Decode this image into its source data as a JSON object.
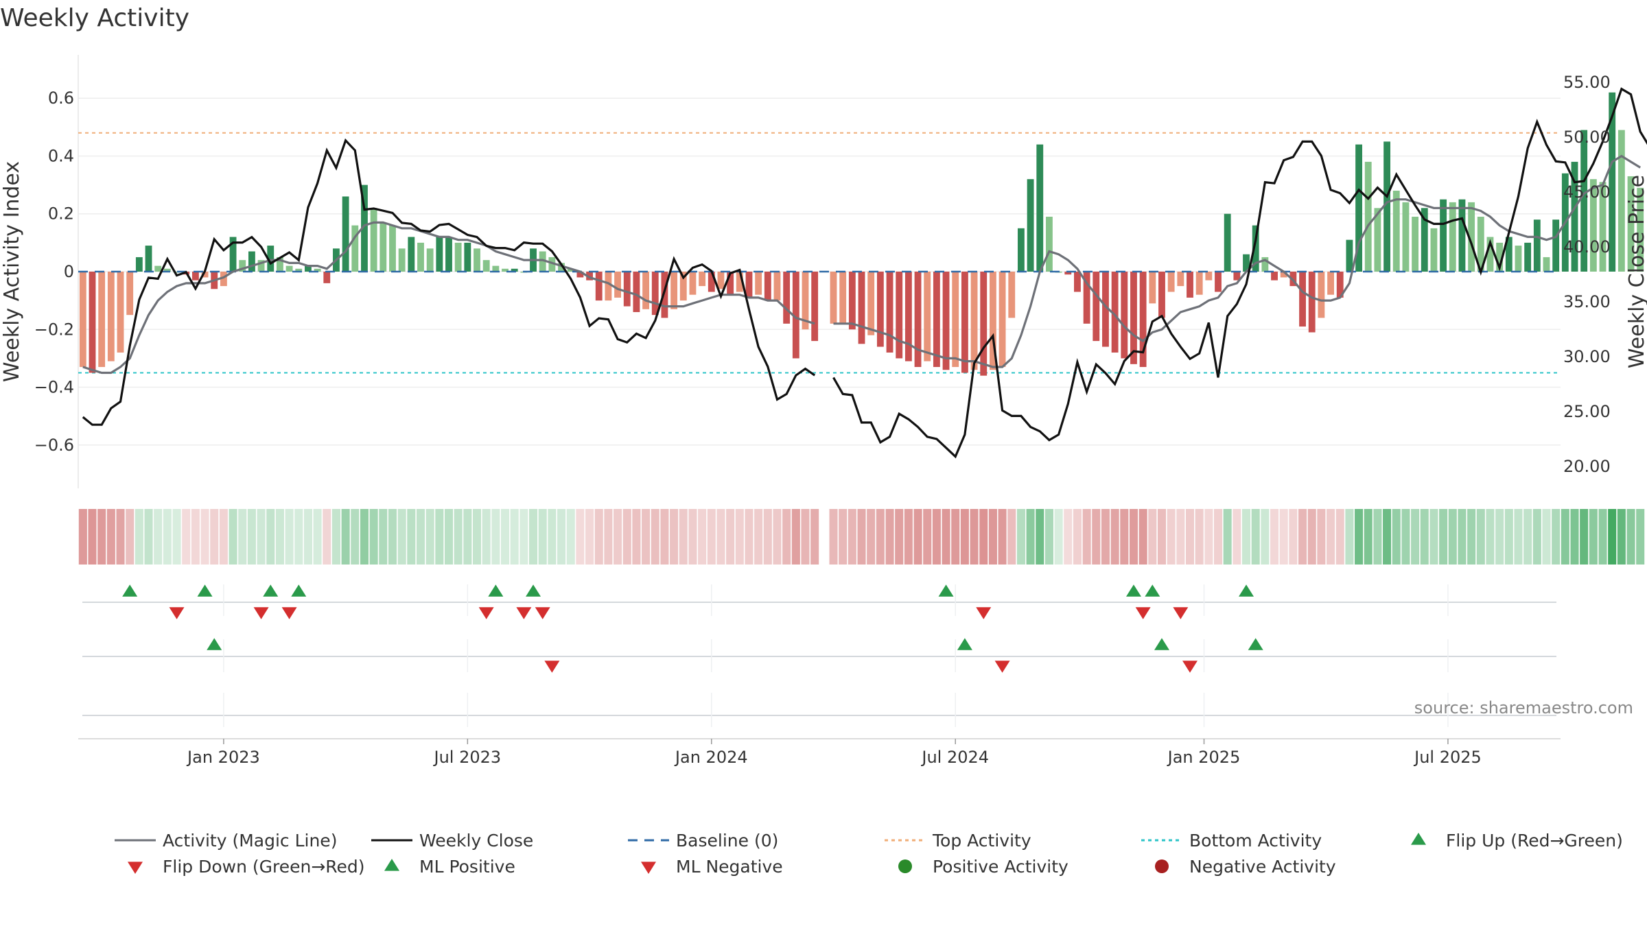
{
  "chart_data": {
    "type": "bar",
    "title": "Weekly Activity",
    "ylabel_left": "Weekly Activity Index",
    "ylabel_right": "Weekly Close Price",
    "source": "source: sharemaestro.com",
    "ylim_left": [
      -0.75,
      0.75
    ],
    "ylim_right": [
      18.0,
      57.5
    ],
    "left_ticks": [
      {
        "value": 0.6,
        "label": "0.6"
      },
      {
        "value": 0.4,
        "label": "0.4"
      },
      {
        "value": 0.2,
        "label": "0.2"
      },
      {
        "value": 0.0,
        "label": "0"
      },
      {
        "value": -0.2,
        "label": "−0.2"
      },
      {
        "value": -0.4,
        "label": "−0.4"
      },
      {
        "value": -0.6,
        "label": "−0.6"
      }
    ],
    "right_ticks": [
      {
        "value": 55,
        "label": "55.00"
      },
      {
        "value": 50,
        "label": "50.00"
      },
      {
        "value": 45,
        "label": "45.00"
      },
      {
        "value": 40,
        "label": "40.00"
      },
      {
        "value": 35,
        "label": "35.00"
      },
      {
        "value": 30,
        "label": "30.00"
      },
      {
        "value": 25,
        "label": "25.00"
      },
      {
        "value": 20,
        "label": "20.00"
      }
    ],
    "x_week_range": [
      -0.5,
      157.5
    ],
    "x_ticks": [
      {
        "week": 15,
        "label": "Jan 2023"
      },
      {
        "week": 41,
        "label": "Jul 2023"
      },
      {
        "week": 67,
        "label": "Jan 2024"
      },
      {
        "week": 93,
        "label": "Jul 2024"
      },
      {
        "week": 119.5,
        "label": "Jan 2025"
      },
      {
        "week": 145.5,
        "label": "Jul 2025"
      }
    ],
    "top_activity": 0.48,
    "bottom_activity": -0.35,
    "activity": [
      -0.33,
      -0.35,
      -0.33,
      -0.31,
      -0.28,
      -0.15,
      0.05,
      0.09,
      0.02,
      0.01,
      0.0,
      -0.01,
      -0.03,
      -0.02,
      -0.06,
      -0.05,
      0.12,
      0.04,
      0.07,
      0.04,
      0.09,
      0.05,
      0.02,
      0.01,
      0.02,
      0.01,
      -0.04,
      0.08,
      0.26,
      0.16,
      0.3,
      0.22,
      0.17,
      0.16,
      0.08,
      0.12,
      0.1,
      0.08,
      0.12,
      0.12,
      0.1,
      0.1,
      0.08,
      0.04,
      0.02,
      0.01,
      0.01,
      0.0,
      0.08,
      0.07,
      0.05,
      0.03,
      0.01,
      -0.02,
      -0.03,
      -0.1,
      -0.1,
      -0.09,
      -0.12,
      -0.14,
      -0.13,
      -0.15,
      -0.16,
      -0.13,
      -0.1,
      -0.08,
      -0.05,
      -0.07,
      -0.06,
      -0.08,
      -0.07,
      -0.09,
      -0.08,
      -0.1,
      -0.1,
      -0.18,
      -0.3,
      -0.2,
      -0.24,
      null,
      -0.18,
      -0.18,
      -0.2,
      -0.25,
      -0.22,
      -0.26,
      -0.28,
      -0.3,
      -0.31,
      -0.33,
      -0.31,
      -0.33,
      -0.34,
      -0.33,
      -0.35,
      -0.34,
      -0.36,
      -0.34,
      -0.33,
      -0.16,
      0.15,
      0.32,
      0.44,
      0.19,
      0.0,
      -0.01,
      -0.07,
      -0.18,
      -0.24,
      -0.26,
      -0.28,
      -0.3,
      -0.32,
      -0.33,
      -0.11,
      -0.16,
      -0.07,
      -0.05,
      -0.09,
      -0.08,
      -0.03,
      -0.07,
      0.2,
      -0.03,
      0.06,
      0.16,
      0.05,
      -0.03,
      -0.02,
      -0.05,
      -0.19,
      -0.21,
      -0.16,
      -0.08,
      -0.09,
      0.11,
      0.44,
      0.38,
      0.22,
      0.45,
      0.28,
      0.24,
      0.19,
      0.22,
      0.15,
      0.25,
      0.24,
      0.25,
      0.24,
      0.19,
      0.12,
      0.1,
      0.12,
      0.09,
      0.1,
      0.18,
      0.05,
      0.18,
      0.34,
      0.38,
      0.49,
      0.32,
      0.31,
      0.62,
      0.49,
      0.33,
      0.29
    ],
    "magic_line": [
      -0.33,
      -0.34,
      -0.35,
      -0.35,
      -0.33,
      -0.3,
      -0.22,
      -0.15,
      -0.1,
      -0.07,
      -0.05,
      -0.04,
      -0.04,
      -0.04,
      -0.03,
      -0.02,
      0.0,
      0.01,
      0.02,
      0.03,
      0.04,
      0.04,
      0.03,
      0.03,
      0.02,
      0.02,
      0.01,
      0.04,
      0.07,
      0.12,
      0.16,
      0.17,
      0.17,
      0.16,
      0.15,
      0.15,
      0.14,
      0.13,
      0.12,
      0.12,
      0.11,
      0.11,
      0.1,
      0.09,
      0.07,
      0.06,
      0.05,
      0.04,
      0.04,
      0.04,
      0.03,
      0.02,
      0.01,
      0.0,
      -0.02,
      -0.03,
      -0.04,
      -0.06,
      -0.07,
      -0.08,
      -0.1,
      -0.11,
      -0.12,
      -0.12,
      -0.12,
      -0.11,
      -0.1,
      -0.09,
      -0.08,
      -0.08,
      -0.08,
      -0.09,
      -0.09,
      -0.1,
      -0.1,
      -0.13,
      -0.16,
      -0.17,
      -0.18,
      null,
      -0.18,
      -0.18,
      -0.18,
      -0.19,
      -0.2,
      -0.21,
      -0.22,
      -0.24,
      -0.25,
      -0.27,
      -0.28,
      -0.29,
      -0.3,
      -0.3,
      -0.31,
      -0.31,
      -0.32,
      -0.33,
      -0.33,
      -0.3,
      -0.22,
      -0.12,
      0.0,
      0.07,
      0.06,
      0.04,
      0.01,
      -0.04,
      -0.08,
      -0.12,
      -0.15,
      -0.19,
      -0.22,
      -0.24,
      -0.21,
      -0.2,
      -0.17,
      -0.14,
      -0.13,
      -0.12,
      -0.1,
      -0.09,
      -0.05,
      -0.04,
      0.0,
      0.03,
      0.04,
      0.02,
      0.0,
      -0.03,
      -0.07,
      -0.09,
      -0.1,
      -0.1,
      -0.09,
      -0.04,
      0.1,
      0.16,
      0.2,
      0.24,
      0.25,
      0.25,
      0.24,
      0.23,
      0.22,
      0.22,
      0.22,
      0.22,
      0.22,
      0.21,
      0.19,
      0.16,
      0.14,
      0.13,
      0.12,
      0.12,
      0.11,
      0.12,
      0.17,
      0.22,
      0.27,
      0.29,
      0.3,
      0.38,
      0.4,
      0.38,
      0.36
    ],
    "weekly_close": [
      24.5,
      23.8,
      23.8,
      25.3,
      25.9,
      31.0,
      35.2,
      37.2,
      37.1,
      38.9,
      37.4,
      37.7,
      36.2,
      37.8,
      40.7,
      39.7,
      40.4,
      40.4,
      40.9,
      40.0,
      38.5,
      39.0,
      39.5,
      38.8,
      43.6,
      45.8,
      48.8,
      47.2,
      49.7,
      48.8,
      43.4,
      43.5,
      43.3,
      43.1,
      42.2,
      42.1,
      41.5,
      41.4,
      42.0,
      42.1,
      41.6,
      41.1,
      40.9,
      40.1,
      39.9,
      39.9,
      39.7,
      40.4,
      40.3,
      40.3,
      39.6,
      38.4,
      37.1,
      35.4,
      32.8,
      33.5,
      33.4,
      31.6,
      31.3,
      32.1,
      31.7,
      33.3,
      36.0,
      38.9,
      37.2,
      38.1,
      38.4,
      37.8,
      35.5,
      37.6,
      37.9,
      34.3,
      30.9,
      29.1,
      26.1,
      26.6,
      28.3,
      28.9,
      28.3,
      null,
      28.1,
      26.6,
      26.5,
      24.0,
      24.0,
      22.2,
      22.7,
      24.8,
      24.3,
      23.6,
      22.7,
      22.5,
      21.7,
      20.9,
      22.9,
      29.4,
      30.8,
      31.9,
      25.1,
      24.6,
      24.6,
      23.6,
      23.2,
      22.4,
      22.9,
      25.7,
      29.5,
      26.8,
      29.3,
      28.5,
      27.5,
      29.6,
      30.5,
      30.4,
      33.2,
      33.7,
      32.1,
      30.9,
      29.8,
      30.3,
      33.1,
      28.1,
      33.7,
      34.8,
      36.6,
      40.6,
      45.9,
      45.8,
      47.9,
      48.2,
      49.6,
      49.6,
      48.3,
      45.2,
      44.9,
      44.0,
      45.2,
      44.4,
      45.4,
      44.6,
      46.6,
      45.2,
      43.8,
      42.5,
      42.1,
      42.1,
      42.4,
      42.6,
      40.3,
      37.7,
      40.4,
      38.1,
      41.3,
      44.6,
      49.0,
      51.4,
      49.3,
      47.8,
      47.7,
      45.9,
      46.0,
      47.6,
      49.6,
      51.9,
      54.4,
      53.9,
      50.5,
      49.1
    ],
    "markers": {
      "flip_up_week": [
        5,
        13,
        20,
        23,
        44,
        48,
        92,
        112,
        114,
        124
      ],
      "flip_down_week": [
        10,
        19,
        22,
        43,
        47,
        49,
        96,
        113,
        117
      ],
      "ml_positive_week": [
        14,
        94,
        115,
        125
      ],
      "ml_negative_week": [
        50,
        98,
        118
      ]
    },
    "legend": [
      {
        "label": "Activity (Magic Line)",
        "symbol": "solid-line",
        "color": "#6e7178"
      },
      {
        "label": "Weekly Close",
        "symbol": "solid-line",
        "color": "#111111"
      },
      {
        "label": "Baseline (0)",
        "symbol": "dashed-line",
        "color": "#2f6aa6"
      },
      {
        "label": "Top Activity",
        "symbol": "dotted-line",
        "color": "#f0ae78"
      },
      {
        "label": "Bottom Activity",
        "symbol": "dotted-line",
        "color": "#2ec4c8"
      },
      {
        "label": "Flip Up (Red→Green)",
        "symbol": "triangle-up",
        "color": "#2a9a4a"
      },
      {
        "label": "Flip Down (Green→Red)",
        "symbol": "triangle-down",
        "color": "#d42e2e"
      },
      {
        "label": "ML Positive",
        "symbol": "triangle-up",
        "color": "#2a9a4a"
      },
      {
        "label": "ML Negative",
        "symbol": "triangle-down",
        "color": "#d42e2e"
      },
      {
        "label": "Positive Activity",
        "symbol": "circle",
        "color": "#2a8a2a"
      },
      {
        "label": "Negative Activity",
        "symbol": "circle",
        "color": "#a82020"
      }
    ],
    "colors": {
      "pos_strong": "#2e8b57",
      "pos_light": "#86c38a",
      "neg_strong": "#c85050",
      "neg_light": "#e8957a",
      "magic": "#6e7178",
      "close": "#111111",
      "baseline": "#2f6aa6",
      "top": "#f0ae78",
      "bottom": "#2ec4c8",
      "up": "#2a9a4a",
      "down": "#d42e2e",
      "strip_pos": "#3aa55a",
      "strip_neg": "#c85656"
    }
  }
}
